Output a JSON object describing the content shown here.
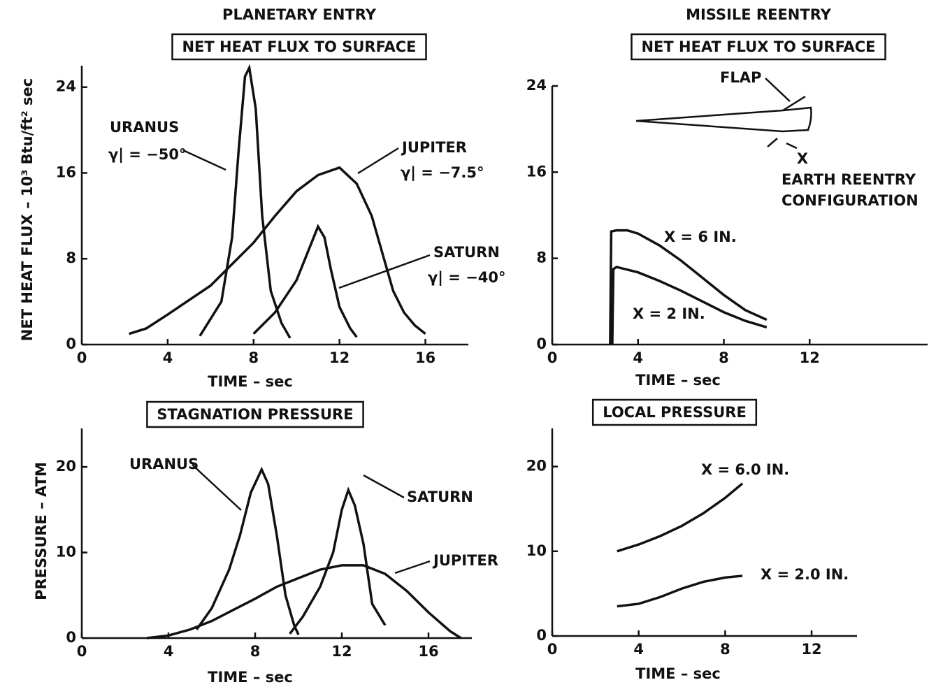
{
  "headings": [
    "PLANETARY ENTRY",
    "MISSILE REENTRY"
  ],
  "chart_data": [
    {
      "type": "line",
      "title": "NET HEAT FLUX TO SURFACE",
      "x_label": "TIME – sec",
      "y_label": "NET HEAT FLUX – 10³ Btu/ft² sec",
      "xlim": [
        0,
        18
      ],
      "ylim": [
        0,
        26
      ],
      "xticks": [
        0,
        4,
        8,
        12,
        16
      ],
      "yticks": [
        0,
        8,
        16,
        24
      ],
      "annotations": [
        "γ| = −50°",
        "γ| = −7.5°",
        "γ| = −40°"
      ],
      "series": [
        {
          "name": "URANUS",
          "color": "#111111",
          "x": [
            5.5,
            6.5,
            7.0,
            7.3,
            7.6,
            7.8,
            8.1,
            8.4,
            8.8,
            9.3,
            9.7
          ],
          "values": [
            0.8,
            4,
            10,
            18,
            25,
            25.8,
            22,
            12,
            5,
            2,
            0.6
          ]
        },
        {
          "name": "JUPITER",
          "color": "#111111",
          "x": [
            2.2,
            3,
            4,
            6,
            8,
            9,
            10,
            11,
            12,
            12.8,
            13.5,
            14,
            14.5,
            15,
            15.5,
            16
          ],
          "values": [
            1,
            1.5,
            2.8,
            5.5,
            9.5,
            12,
            14.3,
            15.8,
            16.5,
            15,
            12,
            8.5,
            5,
            3,
            1.8,
            1
          ]
        },
        {
          "name": "SATURN",
          "color": "#111111",
          "x": [
            8,
            9,
            10,
            10.5,
            11,
            11.3,
            11.6,
            12,
            12.5,
            12.8
          ],
          "values": [
            1,
            3,
            6,
            8.5,
            11,
            10,
            7,
            3.5,
            1.5,
            0.7
          ]
        }
      ]
    },
    {
      "type": "line",
      "title": "NET HEAT FLUX TO SURFACE",
      "x_label": "TIME – sec",
      "xlim": [
        0,
        17.5
      ],
      "ylim": [
        0,
        24
      ],
      "xticks": [
        0,
        4,
        8,
        12
      ],
      "yticks": [
        0,
        8,
        16,
        24
      ],
      "annotations": [
        "FLAP",
        "X",
        "EARTH REENTRY",
        "CONFIGURATION"
      ],
      "series": [
        {
          "name": "X = 6 IN.",
          "color": "#111111",
          "x": [
            2.7,
            2.75,
            3,
            3.5,
            4,
            5,
            6,
            7,
            8,
            9,
            10
          ],
          "values": [
            0,
            10.5,
            10.6,
            10.6,
            10.3,
            9.2,
            7.8,
            6.2,
            4.6,
            3.2,
            2.3
          ]
        },
        {
          "name": "X = 2 IN.",
          "color": "#111111",
          "x": [
            2.8,
            2.85,
            3,
            4,
            5,
            6,
            7,
            8,
            9,
            10
          ],
          "values": [
            0,
            7,
            7.2,
            6.7,
            5.9,
            5,
            4,
            3,
            2.2,
            1.6
          ]
        }
      ]
    },
    {
      "type": "line",
      "title": "STAGNATION PRESSURE",
      "x_label": "TIME – sec",
      "y_label": "PRESSURE – ATM",
      "xlim": [
        0,
        18
      ],
      "ylim": [
        0,
        24.5
      ],
      "xticks": [
        0,
        4,
        8,
        12,
        16
      ],
      "yticks": [
        0,
        10,
        20
      ],
      "series": [
        {
          "name": "URANUS",
          "color": "#111111",
          "x": [
            5.3,
            6,
            6.8,
            7.3,
            7.8,
            8.3,
            8.6,
            9,
            9.4,
            9.8,
            10
          ],
          "values": [
            1,
            3.5,
            8,
            12,
            17,
            19.7,
            18,
            12,
            5,
            1.5,
            0.4
          ]
        },
        {
          "name": "SATURN",
          "color": "#111111",
          "x": [
            9.6,
            10.2,
            11,
            11.6,
            12,
            12.3,
            12.6,
            13,
            13.4,
            14
          ],
          "values": [
            0.5,
            2.5,
            6,
            10,
            15,
            17.3,
            15.5,
            11,
            4,
            1.5
          ]
        },
        {
          "name": "JUPITER",
          "color": "#111111",
          "x": [
            3,
            4,
            5,
            6,
            7,
            8,
            9,
            10,
            11,
            12,
            13,
            14,
            15,
            16,
            17,
            17.5
          ],
          "values": [
            0,
            0.3,
            1,
            2,
            3.3,
            4.6,
            6,
            7,
            8,
            8.5,
            8.5,
            7.5,
            5.5,
            3,
            0.8,
            0
          ]
        }
      ]
    },
    {
      "type": "line",
      "title": "LOCAL PRESSURE",
      "x_label": "TIME – sec",
      "xlim": [
        0,
        14.1
      ],
      "ylim": [
        0,
        24.5
      ],
      "xticks": [
        0,
        4,
        8,
        12
      ],
      "yticks": [
        0,
        10,
        20
      ],
      "series": [
        {
          "name": "X = 6.0 IN.",
          "color": "#111111",
          "x": [
            3,
            4,
            5,
            6,
            7,
            8,
            8.8
          ],
          "values": [
            10,
            10.8,
            11.8,
            13,
            14.5,
            16.3,
            18
          ]
        },
        {
          "name": "X = 2.0 IN.",
          "color": "#111111",
          "x": [
            3,
            4,
            5,
            6,
            7,
            8,
            8.8
          ],
          "values": [
            3.5,
            3.8,
            4.6,
            5.6,
            6.4,
            6.9,
            7.1
          ]
        }
      ]
    }
  ]
}
